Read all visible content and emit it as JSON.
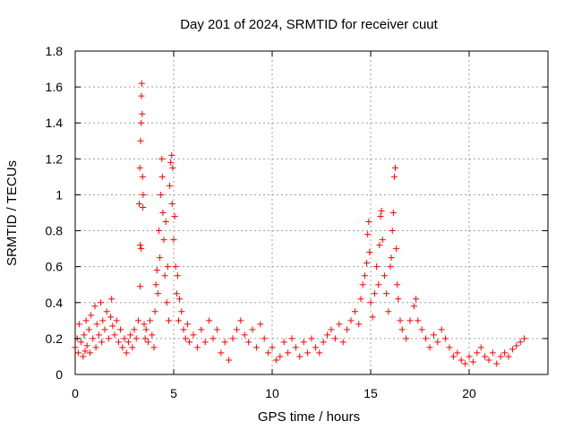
{
  "chart_data": {
    "type": "scatter",
    "title": "Day 201 of 2024, SRMTID for receiver cuut",
    "xlabel": "GPS time / hours",
    "ylabel": "SRMTID / TECUs",
    "xlim": [
      0,
      24
    ],
    "ylim": [
      0,
      1.8
    ],
    "xticks": [
      0,
      5,
      10,
      15,
      20
    ],
    "yticks": [
      0,
      0.2,
      0.4,
      0.6,
      0.8,
      1,
      1.2,
      1.4,
      1.6,
      1.8
    ],
    "xtick_labels": [
      "0",
      "5",
      "10",
      "15",
      "20"
    ],
    "ytick_labels": [
      "0",
      "0.2",
      "0.4",
      "0.6",
      "0.8",
      "1",
      "1.2",
      "1.4",
      "1.6",
      "1.8"
    ],
    "grid": true,
    "marker": "+",
    "color": "#ff0000",
    "series": [
      {
        "name": "SRMTID",
        "points": [
          [
            0.0,
            0.15
          ],
          [
            0.1,
            0.2
          ],
          [
            0.15,
            0.12
          ],
          [
            0.2,
            0.28
          ],
          [
            0.3,
            0.18
          ],
          [
            0.4,
            0.1
          ],
          [
            0.45,
            0.22
          ],
          [
            0.5,
            0.13
          ],
          [
            0.55,
            0.3
          ],
          [
            0.6,
            0.16
          ],
          [
            0.7,
            0.25
          ],
          [
            0.75,
            0.12
          ],
          [
            0.8,
            0.33
          ],
          [
            0.9,
            0.2
          ],
          [
            1.0,
            0.38
          ],
          [
            1.05,
            0.15
          ],
          [
            1.1,
            0.28
          ],
          [
            1.2,
            0.22
          ],
          [
            1.3,
            0.4
          ],
          [
            1.35,
            0.18
          ],
          [
            1.4,
            0.3
          ],
          [
            1.5,
            0.25
          ],
          [
            1.6,
            0.35
          ],
          [
            1.7,
            0.2
          ],
          [
            1.8,
            0.32
          ],
          [
            1.85,
            0.42
          ],
          [
            1.9,
            0.27
          ],
          [
            2.0,
            0.22
          ],
          [
            2.1,
            0.3
          ],
          [
            2.2,
            0.18
          ],
          [
            2.3,
            0.25
          ],
          [
            2.4,
            0.15
          ],
          [
            2.5,
            0.2
          ],
          [
            2.6,
            0.12
          ],
          [
            2.7,
            0.18
          ],
          [
            2.8,
            0.22
          ],
          [
            2.9,
            0.15
          ],
          [
            3.0,
            0.25
          ],
          [
            3.1,
            0.2
          ],
          [
            3.2,
            0.3
          ],
          [
            3.25,
            0.95
          ],
          [
            3.28,
            1.15
          ],
          [
            3.3,
            0.72
          ],
          [
            3.32,
            1.3
          ],
          [
            3.35,
            1.4
          ],
          [
            3.36,
            1.55
          ],
          [
            3.38,
            1.62
          ],
          [
            3.4,
            1.45
          ],
          [
            3.42,
            1.1
          ],
          [
            3.44,
            0.93
          ],
          [
            3.3,
            0.49
          ],
          [
            3.35,
            0.7
          ],
          [
            3.45,
            1.0
          ],
          [
            3.5,
            0.28
          ],
          [
            3.55,
            0.2
          ],
          [
            3.6,
            0.25
          ],
          [
            3.7,
            0.18
          ],
          [
            3.8,
            0.3
          ],
          [
            3.9,
            0.22
          ],
          [
            4.0,
            0.15
          ],
          [
            4.05,
            0.35
          ],
          [
            4.1,
            0.5
          ],
          [
            4.15,
            0.58
          ],
          [
            4.2,
            0.45
          ],
          [
            4.25,
            0.8
          ],
          [
            4.3,
            0.65
          ],
          [
            4.35,
            1.0
          ],
          [
            4.4,
            1.2
          ],
          [
            4.42,
            1.1
          ],
          [
            4.45,
            0.9
          ],
          [
            4.5,
            0.75
          ],
          [
            4.55,
            0.55
          ],
          [
            4.6,
            0.85
          ],
          [
            4.65,
            0.4
          ],
          [
            4.7,
            0.6
          ],
          [
            4.75,
            0.3
          ],
          [
            4.8,
            1.05
          ],
          [
            4.85,
            1.18
          ],
          [
            4.9,
            1.22
          ],
          [
            4.92,
            0.95
          ],
          [
            4.95,
            1.15
          ],
          [
            5.0,
            0.75
          ],
          [
            5.05,
            0.88
          ],
          [
            5.1,
            0.6
          ],
          [
            5.15,
            0.45
          ],
          [
            5.2,
            0.55
          ],
          [
            5.25,
            0.3
          ],
          [
            5.3,
            0.42
          ],
          [
            5.4,
            0.35
          ],
          [
            5.5,
            0.25
          ],
          [
            5.6,
            0.2
          ],
          [
            5.7,
            0.28
          ],
          [
            5.8,
            0.18
          ],
          [
            6.0,
            0.22
          ],
          [
            6.2,
            0.15
          ],
          [
            6.4,
            0.25
          ],
          [
            6.6,
            0.18
          ],
          [
            6.8,
            0.3
          ],
          [
            7.0,
            0.2
          ],
          [
            7.2,
            0.25
          ],
          [
            7.4,
            0.12
          ],
          [
            7.6,
            0.18
          ],
          [
            7.8,
            0.08
          ],
          [
            8.0,
            0.2
          ],
          [
            8.2,
            0.25
          ],
          [
            8.4,
            0.3
          ],
          [
            8.6,
            0.22
          ],
          [
            8.8,
            0.18
          ],
          [
            9.0,
            0.25
          ],
          [
            9.2,
            0.15
          ],
          [
            9.4,
            0.28
          ],
          [
            9.6,
            0.2
          ],
          [
            9.8,
            0.12
          ],
          [
            10.0,
            0.15
          ],
          [
            10.2,
            0.08
          ],
          [
            10.4,
            0.1
          ],
          [
            10.6,
            0.18
          ],
          [
            10.8,
            0.12
          ],
          [
            11.0,
            0.2
          ],
          [
            11.2,
            0.15
          ],
          [
            11.4,
            0.1
          ],
          [
            11.6,
            0.18
          ],
          [
            11.8,
            0.12
          ],
          [
            12.0,
            0.2
          ],
          [
            12.2,
            0.15
          ],
          [
            12.4,
            0.12
          ],
          [
            12.6,
            0.18
          ],
          [
            12.8,
            0.22
          ],
          [
            13.0,
            0.25
          ],
          [
            13.2,
            0.2
          ],
          [
            13.4,
            0.28
          ],
          [
            13.6,
            0.18
          ],
          [
            13.8,
            0.25
          ],
          [
            14.0,
            0.3
          ],
          [
            14.2,
            0.35
          ],
          [
            14.4,
            0.28
          ],
          [
            14.5,
            0.42
          ],
          [
            14.6,
            0.5
          ],
          [
            14.7,
            0.55
          ],
          [
            14.8,
            0.62
          ],
          [
            14.85,
            0.78
          ],
          [
            14.9,
            0.85
          ],
          [
            14.95,
            0.68
          ],
          [
            15.0,
            0.4
          ],
          [
            15.1,
            0.32
          ],
          [
            15.2,
            0.45
          ],
          [
            15.3,
            0.6
          ],
          [
            15.4,
            0.5
          ],
          [
            15.45,
            0.72
          ],
          [
            15.5,
            0.88
          ],
          [
            15.55,
            0.91
          ],
          [
            15.6,
            0.75
          ],
          [
            15.7,
            0.55
          ],
          [
            15.8,
            0.45
          ],
          [
            15.9,
            0.35
          ],
          [
            16.0,
            0.6
          ],
          [
            16.05,
            0.65
          ],
          [
            16.1,
            0.8
          ],
          [
            16.15,
            0.9
          ],
          [
            16.2,
            1.1
          ],
          [
            16.25,
            1.15
          ],
          [
            16.3,
            0.7
          ],
          [
            16.35,
            0.5
          ],
          [
            16.4,
            0.42
          ],
          [
            16.5,
            0.3
          ],
          [
            16.6,
            0.25
          ],
          [
            16.8,
            0.2
          ],
          [
            17.0,
            0.3
          ],
          [
            17.2,
            0.38
          ],
          [
            17.3,
            0.42
          ],
          [
            17.4,
            0.3
          ],
          [
            17.6,
            0.25
          ],
          [
            17.8,
            0.2
          ],
          [
            18.0,
            0.15
          ],
          [
            18.2,
            0.22
          ],
          [
            18.4,
            0.18
          ],
          [
            18.6,
            0.25
          ],
          [
            18.8,
            0.2
          ],
          [
            19.0,
            0.15
          ],
          [
            19.2,
            0.1
          ],
          [
            19.4,
            0.12
          ],
          [
            19.6,
            0.08
          ],
          [
            19.8,
            0.06
          ],
          [
            20.0,
            0.1
          ],
          [
            20.2,
            0.07
          ],
          [
            20.4,
            0.12
          ],
          [
            20.6,
            0.15
          ],
          [
            20.8,
            0.1
          ],
          [
            21.0,
            0.08
          ],
          [
            21.2,
            0.12
          ],
          [
            21.4,
            0.06
          ],
          [
            21.6,
            0.1
          ],
          [
            21.8,
            0.12
          ],
          [
            22.0,
            0.1
          ],
          [
            22.2,
            0.14
          ],
          [
            22.4,
            0.16
          ],
          [
            22.6,
            0.18
          ],
          [
            22.8,
            0.2
          ]
        ]
      }
    ]
  }
}
